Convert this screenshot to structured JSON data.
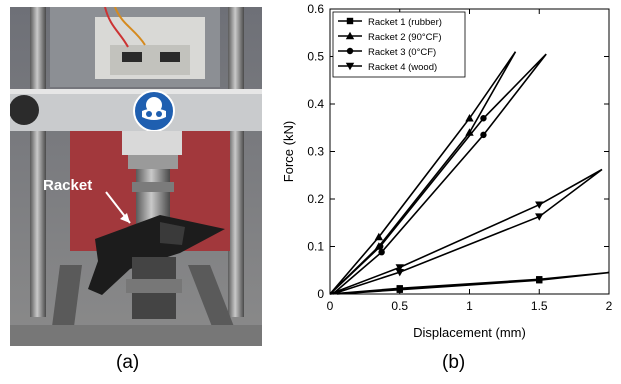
{
  "figure": {
    "photo_label": "Racket",
    "caption_a": "(a)",
    "caption_b": "(b)",
    "photo_sign_icon": "safety-goggles-icon"
  },
  "chart_data": {
    "type": "line",
    "xlabel": "Displacement (mm)",
    "ylabel": "Force (kN)",
    "xlim": [
      0,
      2
    ],
    "ylim": [
      0,
      0.6
    ],
    "x_ticks": [
      0,
      0.5,
      1,
      1.5,
      2
    ],
    "y_ticks": [
      0,
      0.1,
      0.2,
      0.3,
      0.4,
      0.5,
      0.6
    ],
    "legend_position": "top-left",
    "grid": false,
    "series": [
      {
        "name": "Racket 1 (rubber)",
        "marker": "square",
        "color": "#000000",
        "loading": [
          [
            0,
            0
          ],
          [
            0.5,
            0.012
          ],
          [
            1.5,
            0.031
          ],
          [
            2.0,
            0.045
          ]
        ],
        "unloading": [
          [
            2.0,
            0.045
          ],
          [
            1.5,
            0.029
          ],
          [
            0.5,
            0.009
          ],
          [
            0.05,
            0
          ]
        ]
      },
      {
        "name": "Racket 2 (90°CF)",
        "marker": "triangle-up",
        "color": "#000000",
        "loading": [
          [
            0,
            0
          ],
          [
            0.35,
            0.12
          ],
          [
            1.0,
            0.37
          ],
          [
            1.33,
            0.51
          ]
        ],
        "unloading": [
          [
            1.33,
            0.51
          ],
          [
            1.0,
            0.34
          ],
          [
            0.35,
            0.1
          ],
          [
            0,
            0
          ]
        ]
      },
      {
        "name": "Racket 3 (0°CF)",
        "marker": "circle",
        "color": "#000000",
        "loading": [
          [
            0,
            0
          ],
          [
            0.36,
            0.1
          ],
          [
            1.1,
            0.37
          ],
          [
            1.55,
            0.505
          ]
        ],
        "unloading": [
          [
            1.55,
            0.505
          ],
          [
            1.1,
            0.335
          ],
          [
            0.37,
            0.088
          ],
          [
            0.02,
            0
          ]
        ]
      },
      {
        "name": "Racket 4 (wood)",
        "marker": "triangle-down",
        "color": "#000000",
        "loading": [
          [
            0,
            0
          ],
          [
            0.5,
            0.056
          ],
          [
            1.5,
            0.188
          ],
          [
            1.95,
            0.262
          ]
        ],
        "unloading": [
          [
            1.95,
            0.262
          ],
          [
            1.5,
            0.163
          ],
          [
            0.5,
            0.046
          ],
          [
            0.02,
            0
          ]
        ]
      }
    ]
  }
}
